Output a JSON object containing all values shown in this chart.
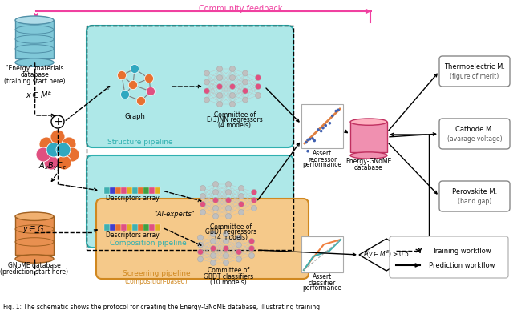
{
  "title": "Fig. 1: The schematic shows the protocol for creating the Energy-GNoME database, illustrating training",
  "community_feedback": "Community feedback",
  "energy_db_label": [
    "\"Energy\" materials",
    "database",
    "(training start here)"
  ],
  "gnome_db_label": [
    "GNoME database",
    "(prediction start here)"
  ],
  "structure_pipeline": "Structure pipeline",
  "composition_pipeline": "Composition pipeline",
  "screening_pipeline": "Screening pipeline",
  "screening_pipeline_sub": "(composition-based)",
  "graph_label": "Graph",
  "committee_e3nn": [
    "Committee of",
    "E(3)NN regressors",
    "(4 models)"
  ],
  "committee_gbdt_reg": [
    "Committee of",
    "GBDT regressors",
    "(4 models)"
  ],
  "descriptors_array1": "Descriptors array",
  "descriptors_array2": "Descriptors array",
  "ai_experts": "\"AI-experts\"",
  "committee_gbdt_cls": [
    "Committee of",
    "GBDT classifiers",
    "(10 models)"
  ],
  "assert_regressor": [
    "Assert",
    "regressor",
    "performance"
  ],
  "assert_classifier": [
    "Assert",
    "classifier",
    "performance"
  ],
  "energy_gnome_db": [
    "Energy-GNoME",
    "database"
  ],
  "Y_label": "Y",
  "thermoelectric": [
    "Thermoelectric M.",
    "(figure of merit)"
  ],
  "cathode": [
    "Cathode M.",
    "(avarage voltage)"
  ],
  "perovskite": [
    "Perovskite M.",
    "(band gap)"
  ],
  "legend_training": "Training workflow",
  "legend_prediction": "Prediction workflow",
  "color_cyan_bg": "#aee8e8",
  "color_cyan_border": "#30b0b0",
  "color_orange_bg": "#f5c98a",
  "color_orange_border": "#d08820",
  "color_pink_arrow": "#f040a0",
  "color_pink_cyl": "#f080a0",
  "color_pink_cyl_top": "#ffb0c0",
  "color_pink_cyl_body": "#f090b0",
  "color_blue_cyl": "#80c8d8",
  "color_blue_cyl_top": "#b0dce8",
  "color_orange_cyl": "#e89050",
  "color_orange_cyl_top": "#f0b070",
  "node_colors": [
    "#e87030",
    "#30a0c0",
    "#e05080"
  ],
  "color_nn_grey": "#c0c0c0",
  "color_nn_pink": "#e05080",
  "color_scatter_line": "#e08040",
  "color_scatter_pts": "#4060b0",
  "color_roc1": "#f08040",
  "color_roc2": "#40b0b0"
}
